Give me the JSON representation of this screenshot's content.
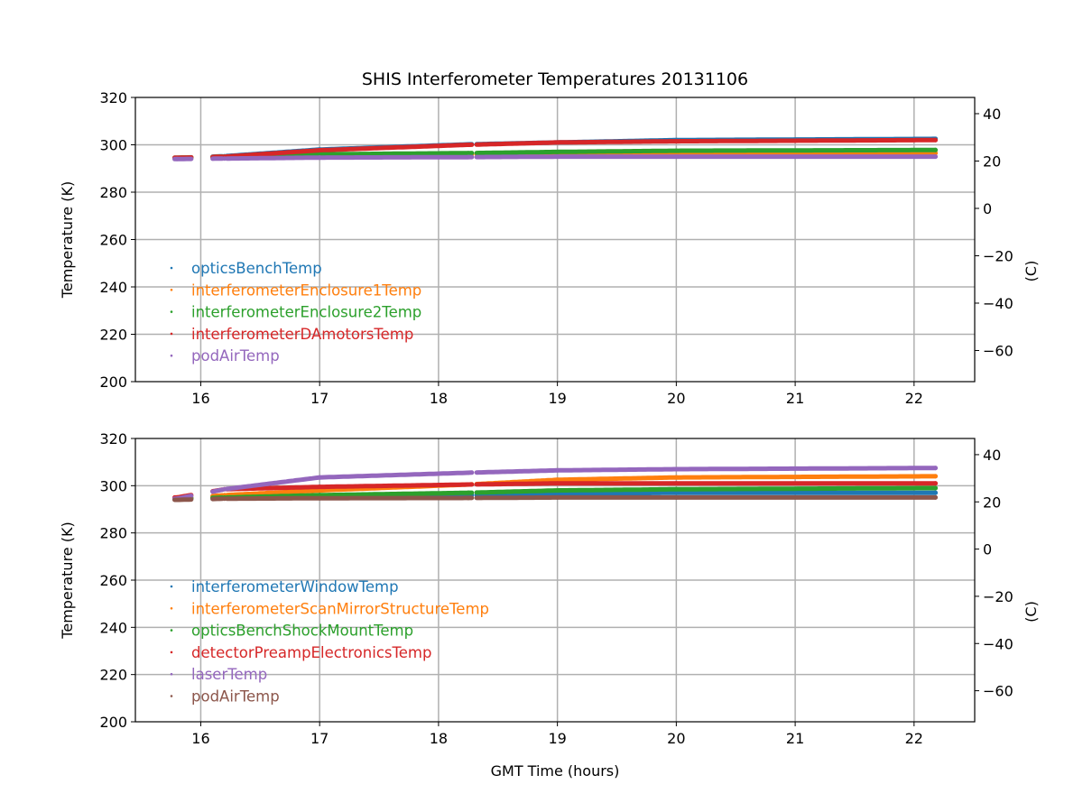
{
  "chart_data": [
    {
      "type": "line",
      "title": "SHIS Interferometer Temperatures 20131106",
      "xlabel": "",
      "ylabel": "Temperature (K)",
      "y2label": "(C)",
      "xlim": [
        15.45,
        22.51
      ],
      "ylim": [
        200,
        320
      ],
      "grid": true,
      "legend_placement": "center-left",
      "xticks": [
        16,
        17,
        18,
        19,
        20,
        21,
        22
      ],
      "yticks": [
        200,
        220,
        240,
        260,
        280,
        300,
        320
      ],
      "y2ticks": [
        -60,
        -40,
        -20,
        0,
        20,
        40
      ],
      "x": [
        15.8,
        16.2,
        17,
        18.25,
        19,
        20,
        22.18
      ],
      "series": [
        {
          "name": "opticsBenchTemp",
          "color": "#1f77b4",
          "values": [
            294.5,
            295.2,
            298,
            300.2,
            301,
            302,
            302.5
          ]
        },
        {
          "name": "interferometerEnclosure1Temp",
          "color": "#ff7f0e",
          "values": [
            294.5,
            295,
            295.5,
            296,
            296.3,
            296.5,
            296.5
          ]
        },
        {
          "name": "interferometerEnclosure2Temp",
          "color": "#2ca02c",
          "values": [
            294.5,
            295,
            296,
            296.5,
            297,
            297.5,
            297.8
          ]
        },
        {
          "name": "interferometerDAmotorsTemp",
          "color": "#d62728",
          "values": [
            294.5,
            295,
            297.7,
            300,
            301,
            301.5,
            302
          ]
        },
        {
          "name": "podAirTemp",
          "color": "#9467bd",
          "values": [
            294,
            294.2,
            294.6,
            294.8,
            295,
            295,
            295
          ]
        }
      ]
    },
    {
      "type": "line",
      "title": "",
      "xlabel": "GMT Time (hours)",
      "ylabel": "Temperature (K)",
      "y2label": "(C)",
      "xlim": [
        15.45,
        22.51
      ],
      "ylim": [
        200,
        320
      ],
      "grid": true,
      "legend_placement": "center-left",
      "xticks": [
        16,
        17,
        18,
        19,
        20,
        21,
        22
      ],
      "yticks": [
        200,
        220,
        240,
        260,
        280,
        300,
        320
      ],
      "y2ticks": [
        -60,
        -40,
        -20,
        0,
        20,
        40
      ],
      "x": [
        15.8,
        16.2,
        17,
        18.25,
        19,
        20,
        22.18
      ],
      "series": [
        {
          "name": "interferometerWindowTemp",
          "color": "#1f77b4",
          "values": [
            294.5,
            295,
            295.5,
            296,
            296.5,
            297,
            297
          ]
        },
        {
          "name": "interferometerScanMirrorStructureTemp",
          "color": "#ff7f0e",
          "values": [
            294.5,
            296,
            298,
            300.5,
            302.5,
            303.5,
            304
          ]
        },
        {
          "name": "opticsBenchShockMountTemp",
          "color": "#2ca02c",
          "values": [
            294.5,
            295,
            296,
            297,
            298,
            298.5,
            299
          ]
        },
        {
          "name": "detectorPreampElectronicsTemp",
          "color": "#d62728",
          "values": [
            295,
            298.5,
            299.5,
            300.5,
            301,
            301,
            301
          ]
        },
        {
          "name": "laserTemp",
          "color": "#9467bd",
          "values": [
            294.5,
            298.5,
            303.5,
            305.5,
            306.5,
            307,
            307.5
          ]
        },
        {
          "name": "podAirTemp",
          "color": "#8c564b",
          "values": [
            294,
            294.5,
            294.7,
            294.8,
            295,
            295,
            295
          ]
        }
      ]
    }
  ]
}
